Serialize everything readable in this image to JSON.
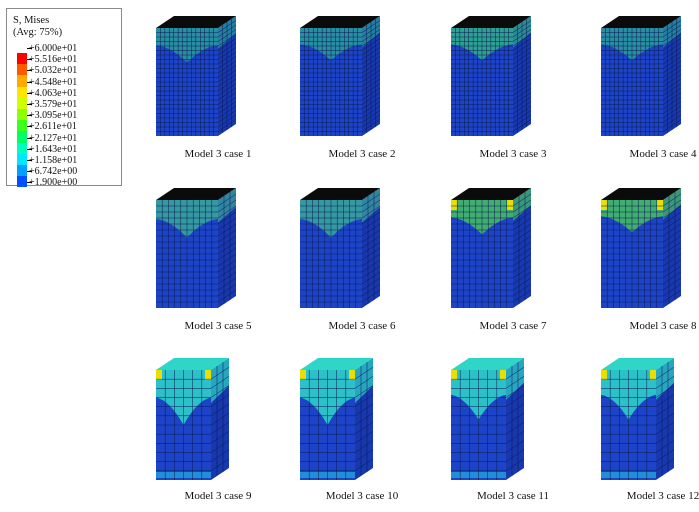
{
  "legend": {
    "title": "S, Mises",
    "subtitle": "(Avg: 75%)",
    "levels": [
      {
        "value": "+6.000e+01",
        "color": "#ff0000"
      },
      {
        "value": "+5.516e+01",
        "color": "#ff5a00"
      },
      {
        "value": "+5.032e+01",
        "color": "#ffaa00"
      },
      {
        "value": "+4.548e+01",
        "color": "#ffe600"
      },
      {
        "value": "+4.063e+01",
        "color": "#d2ff00"
      },
      {
        "value": "+3.579e+01",
        "color": "#8cff00"
      },
      {
        "value": "+3.095e+01",
        "color": "#3cff1e"
      },
      {
        "value": "+2.611e+01",
        "color": "#00ff64"
      },
      {
        "value": "+2.127e+01",
        "color": "#00ffbe"
      },
      {
        "value": "+1.643e+01",
        "color": "#00e6ff"
      },
      {
        "value": "+1.158e+01",
        "color": "#00a0ff"
      },
      {
        "value": "+6.742e+00",
        "color": "#0050ff"
      },
      {
        "value": "+1.900e+00",
        "color": "#0000ff"
      }
    ]
  },
  "panels": [
    {
      "caption": "Model 3 case 1"
    },
    {
      "caption": "Model 3 case 2"
    },
    {
      "caption": "Model 3 case 3"
    },
    {
      "caption": "Model 3 case 4"
    },
    {
      "caption": "Model 3 case 5"
    },
    {
      "caption": "Model 3 case 6"
    },
    {
      "caption": "Model 3 case 7"
    },
    {
      "caption": "Model 3 case 8"
    },
    {
      "caption": "Model 3 case 9"
    },
    {
      "caption": "Model 3 case 10"
    },
    {
      "caption": "Model 3 case 11"
    },
    {
      "caption": "Model 3 case 12"
    }
  ]
}
